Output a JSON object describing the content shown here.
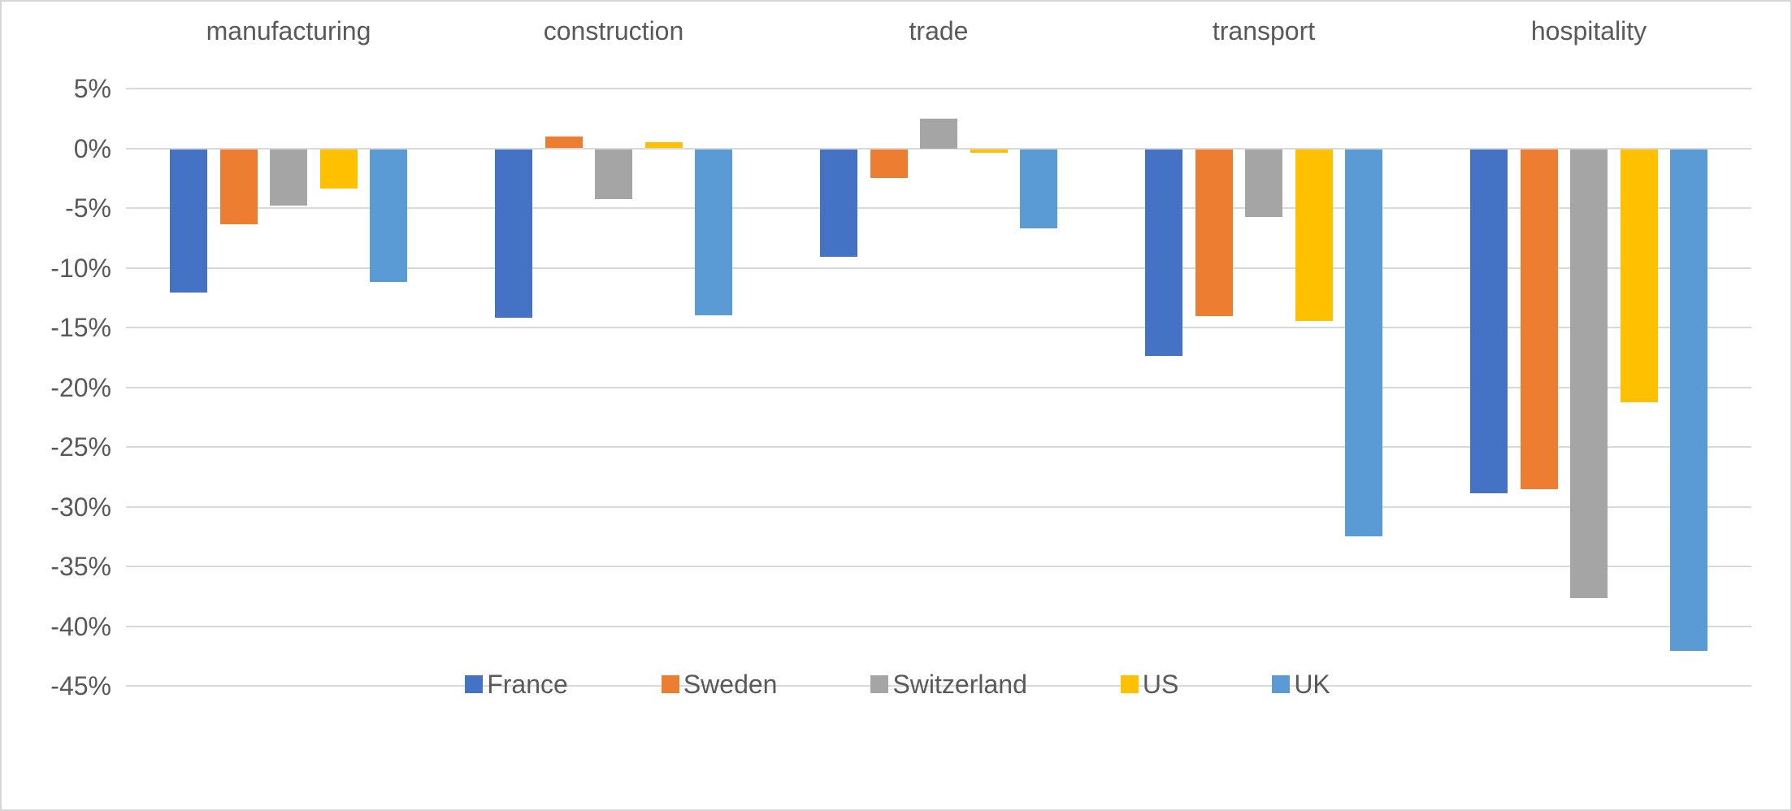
{
  "chart_data": {
    "type": "bar",
    "title": "",
    "xlabel": "",
    "ylabel": "",
    "categories": [
      "manufacturing",
      "construction",
      "trade",
      "transport",
      "hospitality"
    ],
    "series": [
      {
        "name": "France",
        "color": "#4472C4",
        "values": [
          -12.0,
          -14.1,
          -9.0,
          -17.3,
          -28.8
        ]
      },
      {
        "name": "Sweden",
        "color": "#ED7D31",
        "values": [
          -6.3,
          1.0,
          -2.4,
          -14.0,
          -28.5
        ]
      },
      {
        "name": "Switzerland",
        "color": "#A5A5A5",
        "values": [
          -4.7,
          -4.2,
          2.5,
          -5.7,
          -37.6
        ]
      },
      {
        "name": "US",
        "color": "#FFC000",
        "values": [
          -3.3,
          0.5,
          -0.3,
          -14.4,
          -21.2
        ]
      },
      {
        "name": "UK",
        "color": "#5B9BD5",
        "values": [
          -11.1,
          -13.9,
          -6.6,
          -32.4,
          -42.0
        ]
      }
    ],
    "yticks": [
      "5%",
      "0%",
      "-5%",
      "-10%",
      "-15%",
      "-20%",
      "-25%",
      "-30%",
      "-35%",
      "-40%",
      "-45%"
    ],
    "ylim": [
      -45,
      5
    ],
    "value_format": "percent",
    "grid": true,
    "legend_position": "bottom",
    "colors": {
      "gridline": "#D9D9D9",
      "text": "#595959",
      "border": "#D6D6D6",
      "background": "#FFFFFF"
    }
  }
}
